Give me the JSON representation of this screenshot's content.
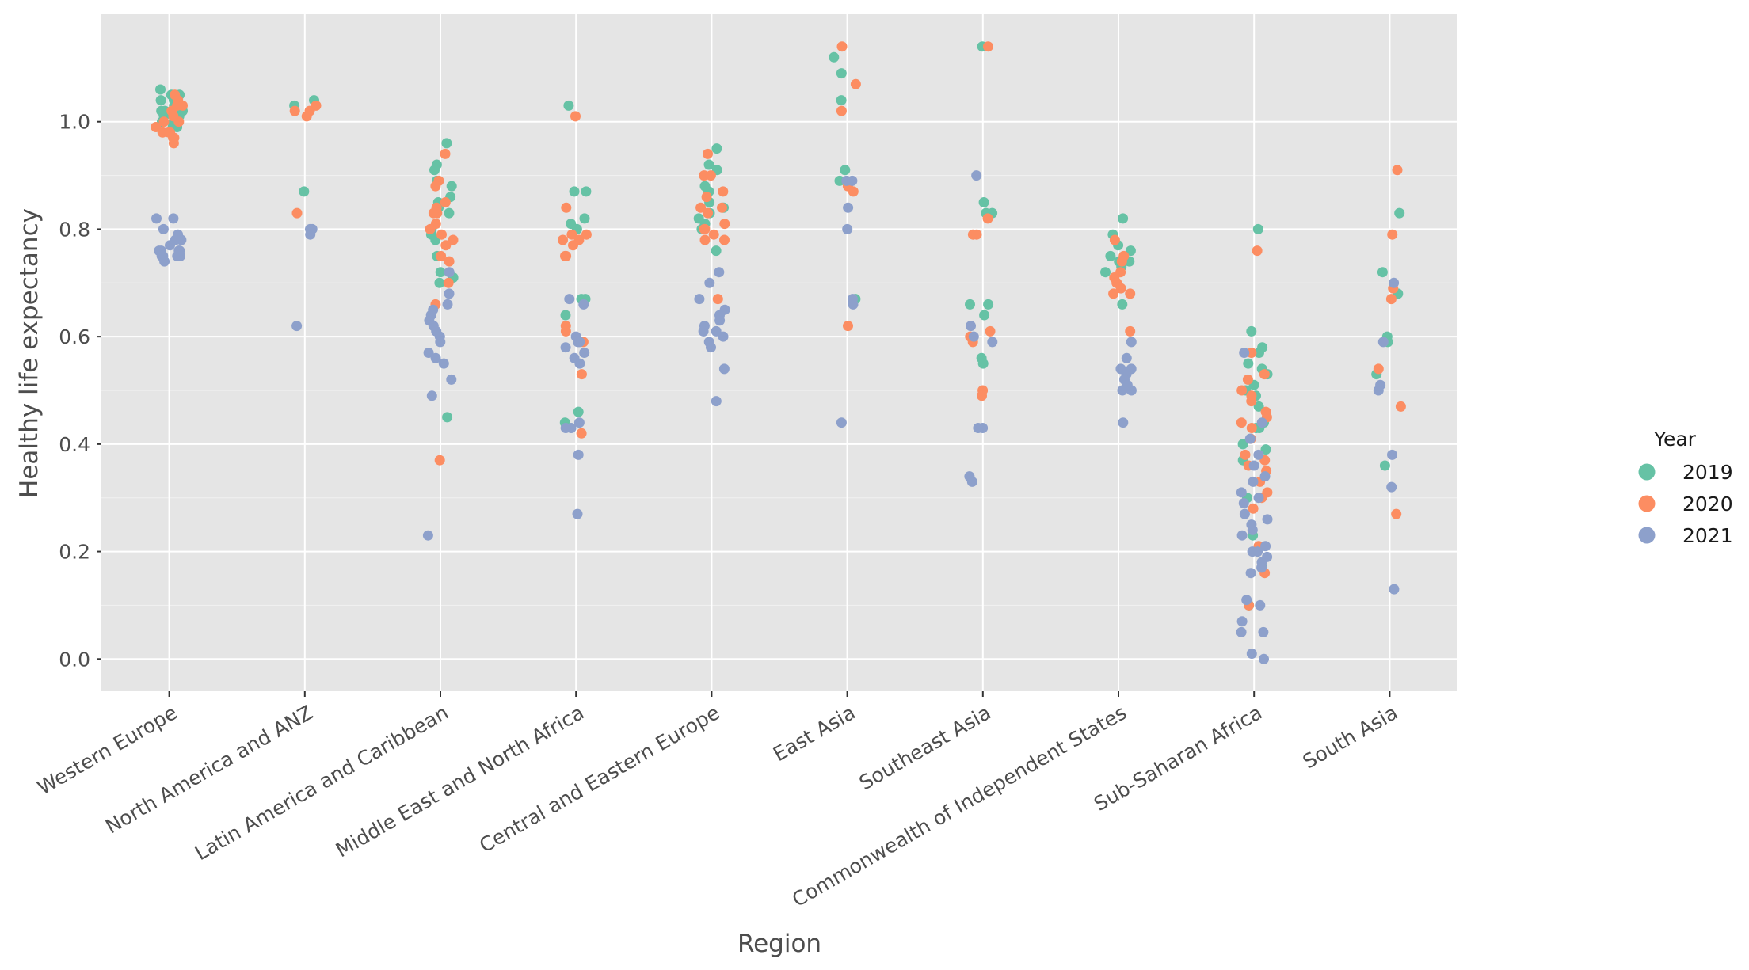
{
  "chart_data": {
    "type": "scatter",
    "title": "",
    "xlabel": "Region",
    "ylabel": "Healthy life expectancy",
    "ylim": [
      -0.06,
      1.2
    ],
    "yticks": [
      "0.0",
      "0.2",
      "0.4",
      "0.6",
      "0.8",
      "1.0"
    ],
    "grid": true,
    "legend_position": "right",
    "legend_title": "Year",
    "categories": [
      "Western Europe",
      "North America and ANZ",
      "Latin America and Caribbean",
      "Middle East and North Africa",
      "Central and Eastern Europe",
      "East Asia",
      "Southeast Asia",
      "Commonwealth of Independent States",
      "Sub-Saharan Africa",
      "South Asia"
    ],
    "colors": {
      "2019": "#66c2a5",
      "2020": "#fc8d62",
      "2021": "#8da0cb"
    },
    "series": [
      {
        "name": "2019",
        "values": [
          [
            1.0,
            1.01,
            0.99,
            1.02,
            1.03,
            1.04,
            1.06,
            1.05,
            1.01,
            1.0,
            1.03,
            1.02,
            0.99,
            1.04,
            1.05,
            1.0,
            1.02,
            1.03,
            1.01
          ],
          [
            1.04,
            1.03,
            0.87
          ],
          [
            0.96,
            0.92,
            0.91,
            0.89,
            0.88,
            0.86,
            0.85,
            0.84,
            0.83,
            0.8,
            0.79,
            0.78,
            0.75,
            0.72,
            0.71,
            0.7,
            0.45
          ],
          [
            1.03,
            0.87,
            0.87,
            0.82,
            0.81,
            0.8,
            0.67,
            0.67,
            0.64,
            0.46,
            0.44
          ],
          [
            0.95,
            0.92,
            0.91,
            0.88,
            0.87,
            0.87,
            0.85,
            0.84,
            0.83,
            0.82,
            0.81,
            0.8,
            0.76
          ],
          [
            1.12,
            1.09,
            1.04,
            0.91,
            0.89,
            0.67
          ],
          [
            1.14,
            0.85,
            0.83,
            0.83,
            0.66,
            0.66,
            0.64,
            0.56,
            0.55
          ],
          [
            0.82,
            0.79,
            0.77,
            0.76,
            0.75,
            0.74,
            0.74,
            0.73,
            0.72,
            0.66
          ],
          [
            0.8,
            0.61,
            0.58,
            0.57,
            0.55,
            0.54,
            0.53,
            0.51,
            0.5,
            0.49,
            0.47,
            0.44,
            0.43,
            0.43,
            0.4,
            0.39,
            0.37,
            0.3,
            0.23,
            0.17,
            0.1
          ],
          [
            0.83,
            0.72,
            0.68,
            0.6,
            0.59,
            0.53,
            0.36
          ]
        ]
      },
      {
        "name": "2020",
        "values": [
          [
            1.05,
            1.04,
            1.03,
            1.03,
            1.02,
            1.0,
            1.0,
            0.99,
            0.98,
            0.98,
            0.97,
            0.97,
            0.96,
            0.98,
            1.01
          ],
          [
            1.03,
            1.02,
            1.02,
            1.01,
            0.83
          ],
          [
            0.94,
            0.89,
            0.88,
            0.85,
            0.84,
            0.83,
            0.83,
            0.81,
            0.8,
            0.79,
            0.78,
            0.77,
            0.75,
            0.74,
            0.7,
            0.66,
            0.37
          ],
          [
            1.01,
            0.84,
            0.79,
            0.79,
            0.78,
            0.78,
            0.77,
            0.75,
            0.75,
            0.62,
            0.61,
            0.59,
            0.53,
            0.42
          ],
          [
            0.94,
            0.9,
            0.9,
            0.87,
            0.86,
            0.84,
            0.84,
            0.83,
            0.81,
            0.8,
            0.8,
            0.79,
            0.78,
            0.78,
            0.67
          ],
          [
            1.14,
            1.07,
            1.02,
            0.88,
            0.87,
            0.62
          ],
          [
            1.14,
            0.82,
            0.79,
            0.79,
            0.61,
            0.6,
            0.59,
            0.5,
            0.49
          ],
          [
            0.78,
            0.75,
            0.74,
            0.72,
            0.71,
            0.7,
            0.7,
            0.69,
            0.68,
            0.68,
            0.61
          ],
          [
            0.76,
            0.57,
            0.53,
            0.52,
            0.5,
            0.49,
            0.48,
            0.46,
            0.45,
            0.44,
            0.43,
            0.41,
            0.38,
            0.37,
            0.36,
            0.35,
            0.33,
            0.31,
            0.3,
            0.28,
            0.21,
            0.16,
            0.1
          ],
          [
            0.91,
            0.79,
            0.69,
            0.67,
            0.54,
            0.47,
            0.27
          ]
        ]
      },
      {
        "name": "2021",
        "values": [
          [
            0.82,
            0.82,
            0.8,
            0.79,
            0.78,
            0.78,
            0.77,
            0.76,
            0.76,
            0.76,
            0.75,
            0.75,
            0.75,
            0.75,
            0.74,
            0.76
          ],
          [
            0.8,
            0.8,
            0.79,
            0.62
          ],
          [
            0.72,
            0.68,
            0.66,
            0.65,
            0.64,
            0.63,
            0.62,
            0.61,
            0.6,
            0.59,
            0.57,
            0.56,
            0.55,
            0.52,
            0.49,
            0.23
          ],
          [
            0.67,
            0.66,
            0.6,
            0.59,
            0.59,
            0.58,
            0.57,
            0.56,
            0.55,
            0.44,
            0.43,
            0.43,
            0.38,
            0.27
          ],
          [
            0.72,
            0.7,
            0.67,
            0.65,
            0.64,
            0.63,
            0.62,
            0.61,
            0.61,
            0.6,
            0.59,
            0.58,
            0.54,
            0.48
          ],
          [
            0.89,
            0.89,
            0.84,
            0.8,
            0.67,
            0.66,
            0.44
          ],
          [
            0.9,
            0.62,
            0.6,
            0.59,
            0.43,
            0.43,
            0.34,
            0.33
          ],
          [
            0.59,
            0.56,
            0.54,
            0.54,
            0.53,
            0.52,
            0.51,
            0.5,
            0.5,
            0.44
          ],
          [
            0.57,
            0.44,
            0.41,
            0.38,
            0.36,
            0.34,
            0.33,
            0.31,
            0.3,
            0.29,
            0.27,
            0.26,
            0.25,
            0.24,
            0.23,
            0.21,
            0.2,
            0.2,
            0.19,
            0.18,
            0.17,
            0.16,
            0.11,
            0.1,
            0.07,
            0.05,
            0.05,
            0.01,
            0.0
          ],
          [
            0.7,
            0.59,
            0.51,
            0.5,
            0.38,
            0.32,
            0.13
          ]
        ]
      }
    ]
  }
}
